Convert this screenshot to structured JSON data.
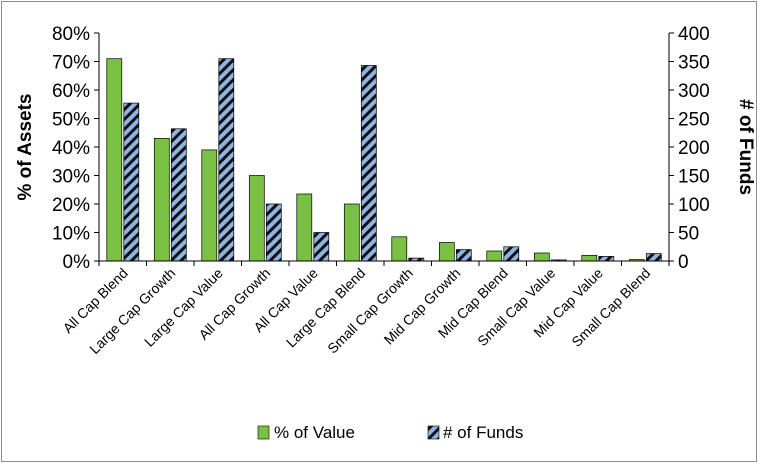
{
  "chart_data": {
    "type": "bar",
    "categories": [
      "All Cap Blend",
      "Large Cap Growth",
      "Large Cap Value",
      "All Cap Growth",
      "All Cap Value",
      "Large Cap Blend",
      "Small Cap Growth",
      "Mid Cap Growth",
      "Mid Cap Blend",
      "Small Cap Value",
      "Mid Cap Value",
      "Small Cap Blend"
    ],
    "series": [
      {
        "name": "% of Value",
        "axis": "left",
        "color": "#7ac143",
        "values": [
          71,
          43,
          39,
          30,
          23.5,
          20,
          8.5,
          6.5,
          3.5,
          2.8,
          2,
          0.5
        ]
      },
      {
        "name": "# of Funds",
        "axis": "right",
        "color": "#8eb4e3",
        "pattern": "diagonal-stripes-black",
        "values": [
          277,
          232,
          355,
          100,
          50,
          343,
          5,
          20,
          25,
          2,
          8,
          13
        ]
      }
    ],
    "ylabel": "% of Assets",
    "ylabel_right": "# of Funds",
    "ylim": [
      0,
      80
    ],
    "ylim_right": [
      0,
      400
    ],
    "yticks": [
      "0%",
      "10%",
      "20%",
      "30%",
      "40%",
      "50%",
      "60%",
      "70%",
      "80%"
    ],
    "yticks_right": [
      "0",
      "50",
      "100",
      "150",
      "200",
      "250",
      "300",
      "350",
      "400"
    ],
    "legend_position": "bottom",
    "grid": false
  }
}
